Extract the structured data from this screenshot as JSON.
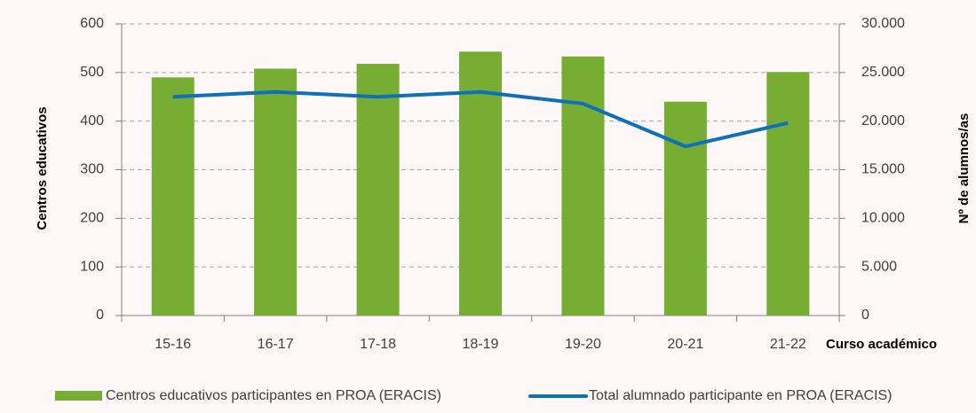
{
  "chart_data": {
    "type": "bar_line",
    "categories": [
      "15-16",
      "16-17",
      "17-18",
      "18-19",
      "19-20",
      "20-21",
      "21-22"
    ],
    "series": [
      {
        "name": "Centros educativos participantes en PROA (ERACIS)",
        "type": "bar",
        "color": "#76ad32",
        "values": [
          490,
          508,
          518,
          543,
          533,
          440,
          501
        ]
      },
      {
        "name": "Total alumnado participante en PROA (ERACIS)",
        "type": "line",
        "axis": "y2",
        "color": "#0e6fba",
        "values": [
          22500,
          23000,
          22500,
          23000,
          21800,
          17400,
          19800
        ]
      }
    ],
    "y_label": "Centros educativos",
    "y2_label": "Nº de alumnos/as",
    "x_label": "Curso académico",
    "ylim": [
      0,
      600
    ],
    "yticks": [
      0,
      100,
      200,
      300,
      400,
      500,
      600
    ],
    "y2lim": [
      0,
      30000
    ],
    "y2ticks": [
      {
        "value": 0,
        "label": "0"
      },
      {
        "value": 5000,
        "label": "5.000"
      },
      {
        "value": 10000,
        "label": "10.000"
      },
      {
        "value": 15000,
        "label": "15.000"
      },
      {
        "value": 20000,
        "label": "20.000"
      },
      {
        "value": 25000,
        "label": "25.000"
      },
      {
        "value": 30000,
        "label": "30.000"
      }
    ],
    "grid": true,
    "legend": "bottom"
  }
}
